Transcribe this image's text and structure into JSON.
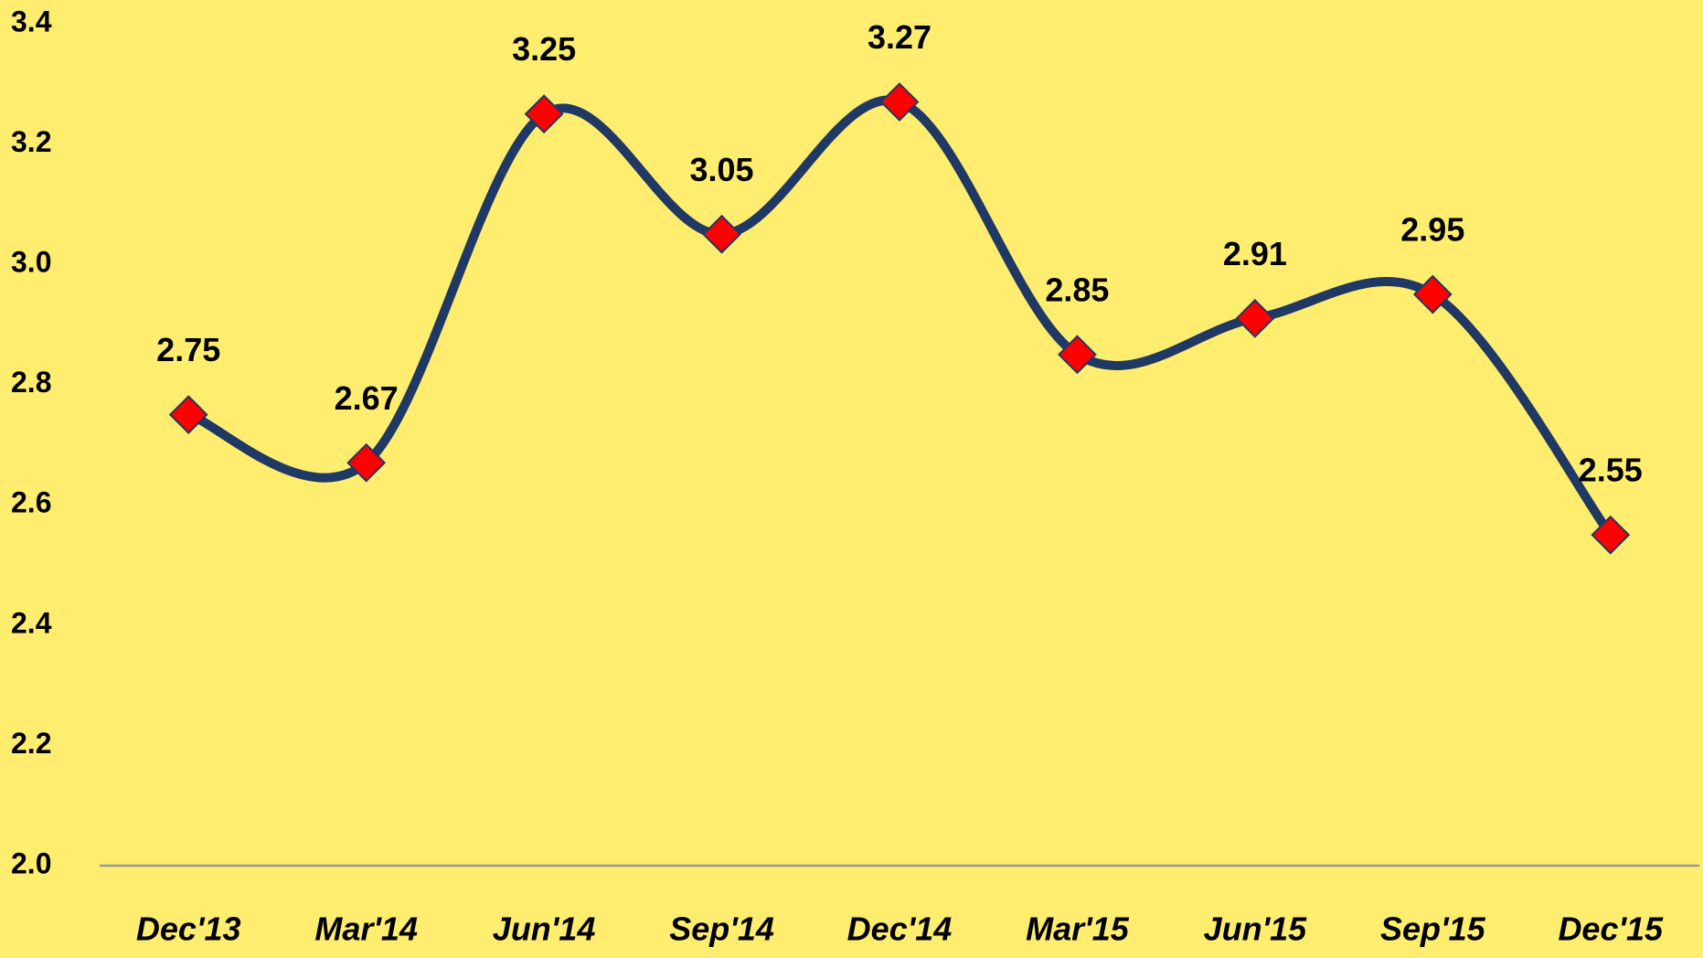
{
  "chart_data": {
    "type": "line",
    "categories": [
      "Dec'13",
      "Mar'14",
      "Jun'14",
      "Sep'14",
      "Dec'14",
      "Mar'15",
      "Jun'15",
      "Sep'15",
      "Dec'15"
    ],
    "series": [
      {
        "name": "Value",
        "color": "#1f3864",
        "marker_color": "#ff0000",
        "values": [
          2.75,
          2.67,
          3.25,
          3.05,
          3.27,
          2.85,
          2.91,
          2.95,
          2.55
        ]
      }
    ],
    "ylim": [
      2,
      3.4
    ],
    "yticks": [
      {
        "value": 2,
        "label": "2.0"
      },
      2.2,
      2.4,
      2.6,
      2.8,
      {
        "value": 3,
        "label": "3.0"
      },
      3.2,
      3.4
    ],
    "grid": false,
    "smooth": true
  }
}
